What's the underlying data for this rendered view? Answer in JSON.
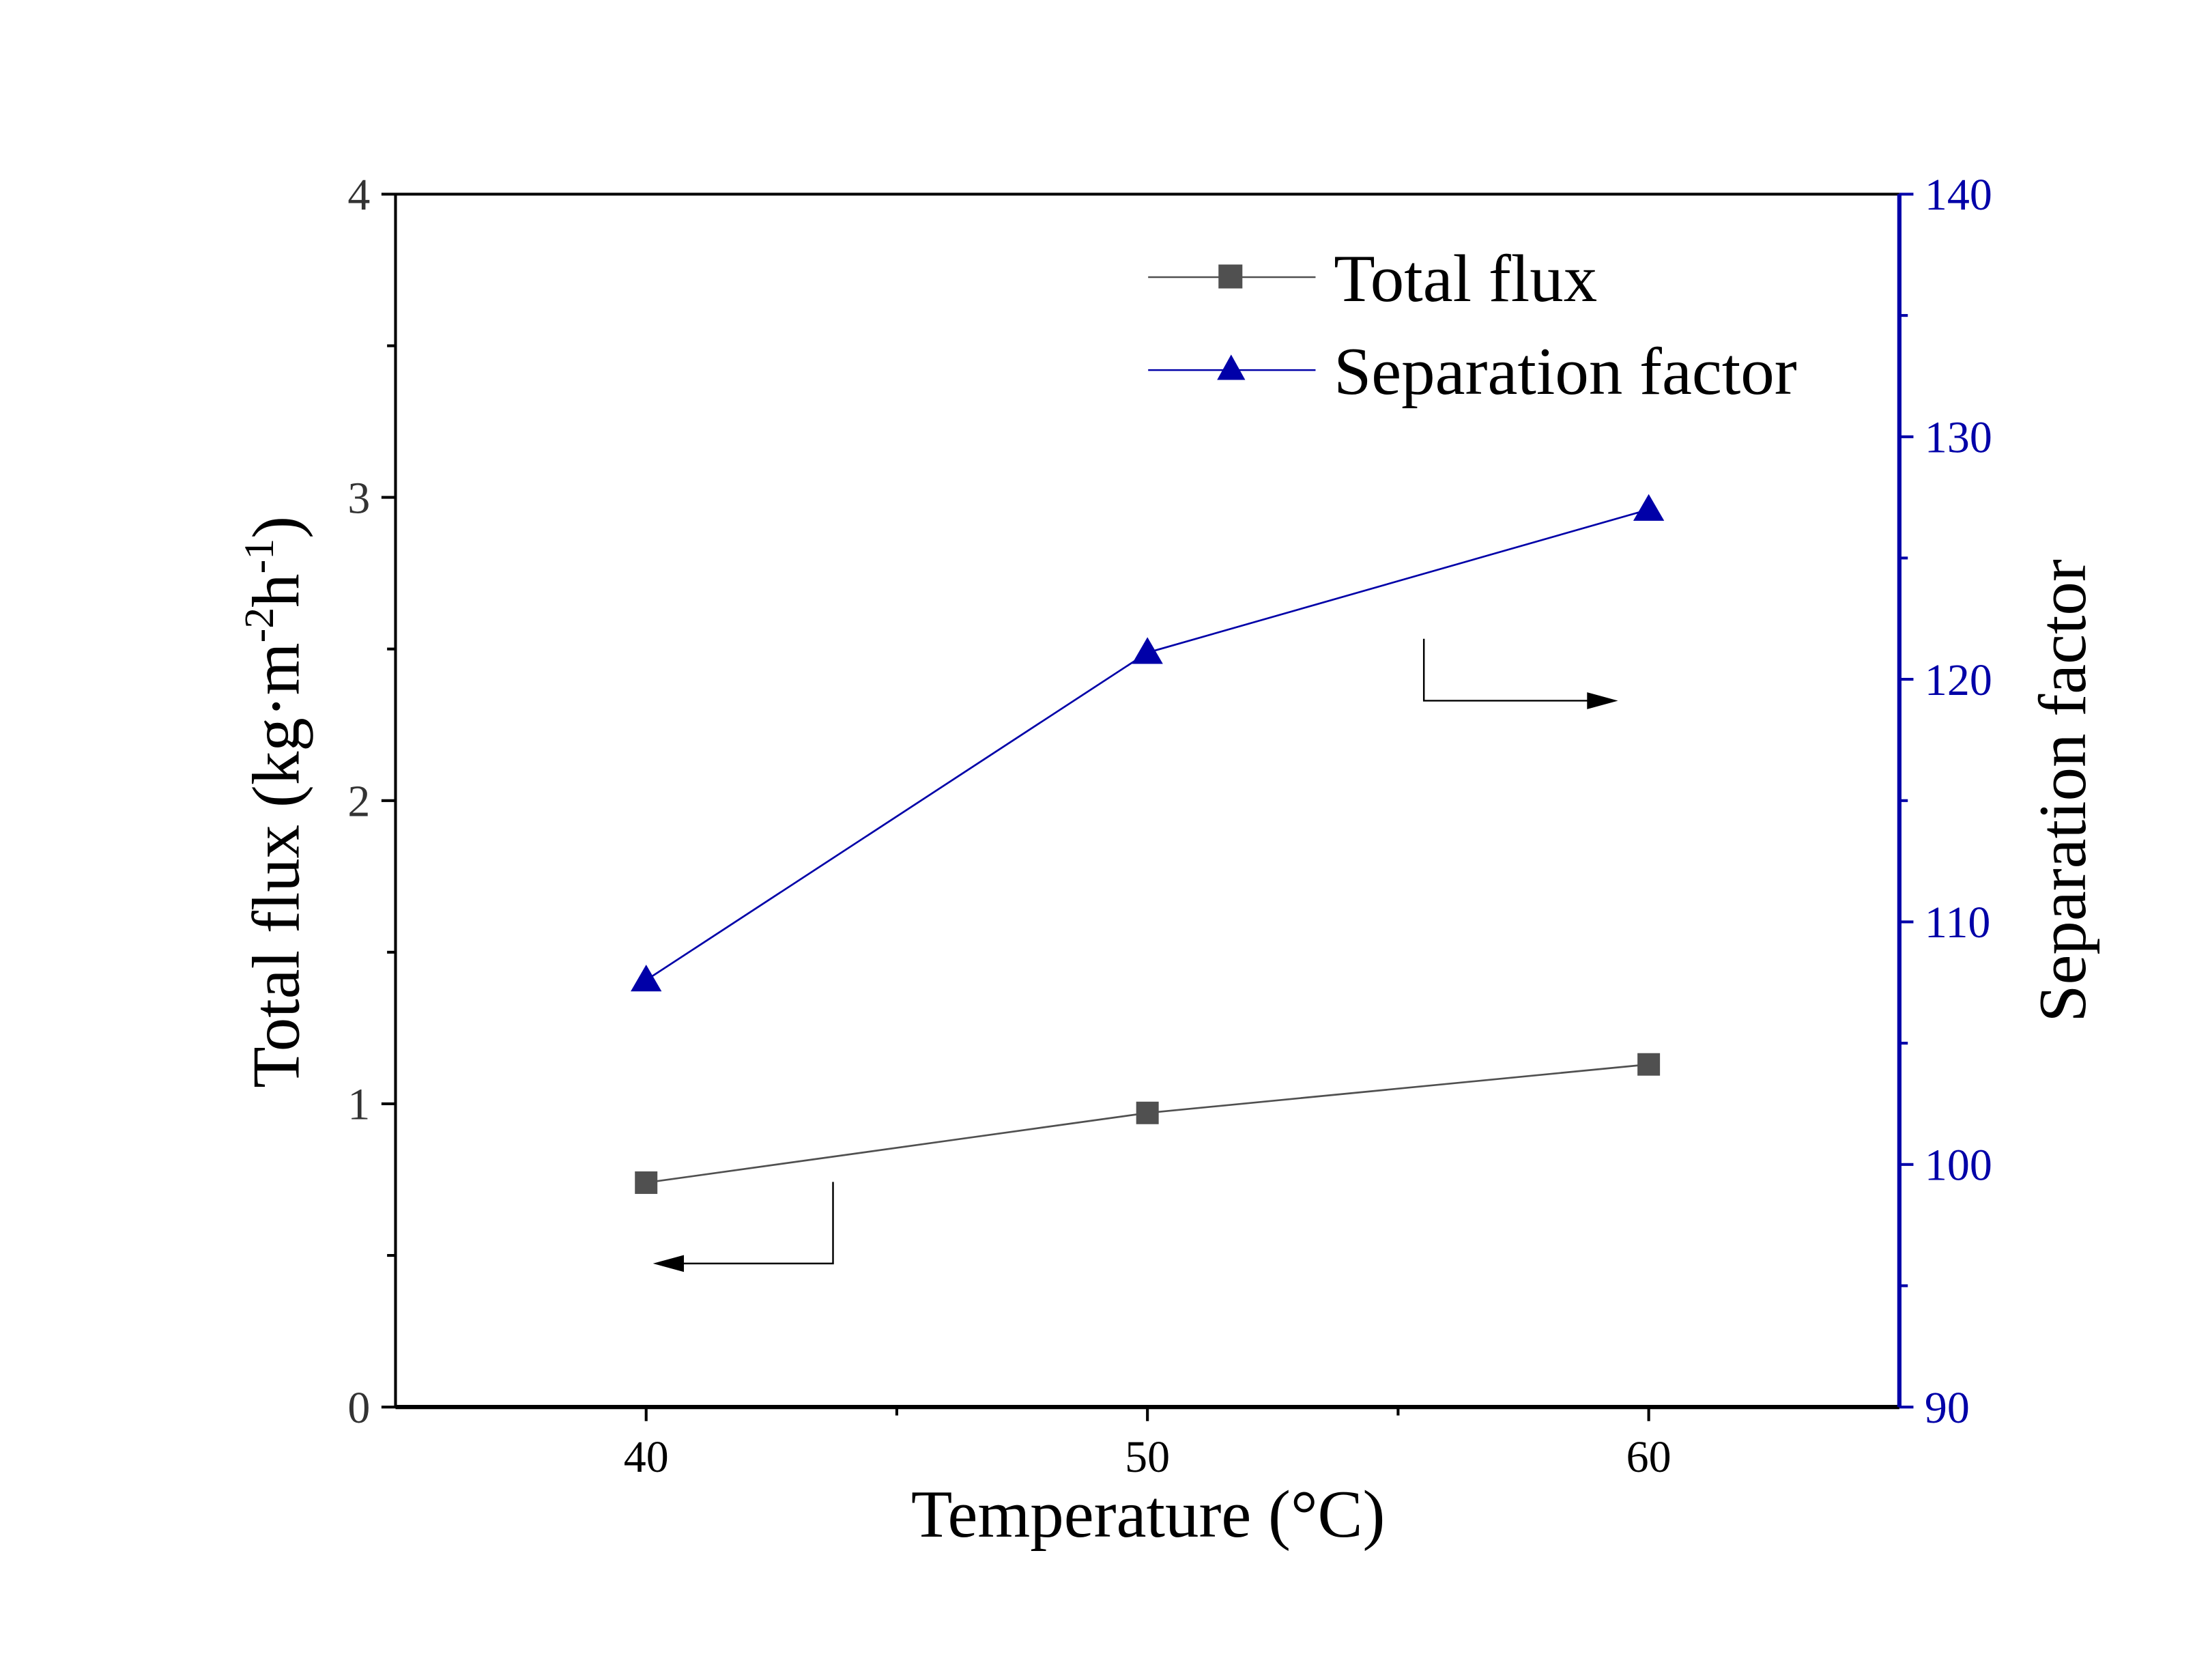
{
  "chart_data": {
    "type": "line",
    "title": "",
    "xlabel": "Temperature (°C)",
    "ylabel_left": {
      "main": "Total flux (kg·m",
      "sup1": "-2",
      "mid": "h",
      "sup2": "-1",
      "end": ")"
    },
    "ylabel_right": "Separation factor",
    "x": [
      40,
      50,
      60
    ],
    "xlim": [
      35,
      65
    ],
    "xticks": [
      40,
      50,
      60
    ],
    "ylim_left": [
      0,
      4
    ],
    "yticks_left": [
      0,
      1,
      2,
      3,
      4
    ],
    "ylim_right": [
      90,
      140
    ],
    "yticks_right": [
      90,
      100,
      110,
      120,
      130,
      140
    ],
    "grid": false,
    "legend_placement": "top-right",
    "series": [
      {
        "name": "Total flux",
        "axis": "left",
        "marker": "square",
        "color": "#505050",
        "values": [
          0.74,
          0.97,
          1.13
        ]
      },
      {
        "name": "Separation factor",
        "axis": "right",
        "marker": "triangle",
        "color": "#0000A8",
        "values": [
          107.6,
          121.1,
          127.0
        ]
      }
    ],
    "colors": {
      "left_axis": "#000000",
      "right_axis": "#0000A8",
      "right_ticks": "#0000A8"
    }
  }
}
